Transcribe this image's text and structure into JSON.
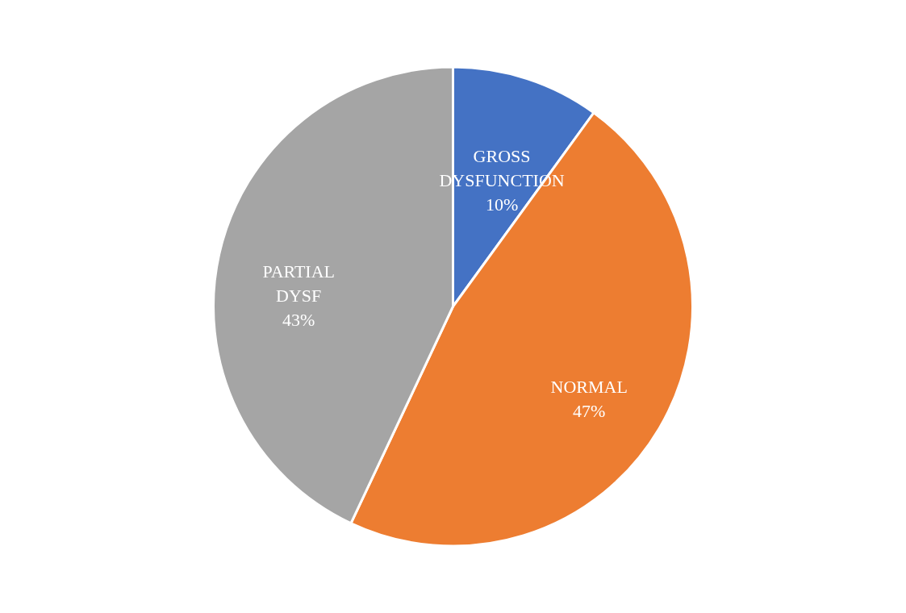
{
  "chart_data": {
    "type": "pie",
    "categories": [
      "GROSS DYSFUNCTION",
      "NORMAL",
      "PARTIAL DYSF"
    ],
    "values": [
      10,
      47,
      43
    ],
    "colors": [
      "#4472c4",
      "#ed7d31",
      "#a5a5a5"
    ],
    "value_labels": [
      "10%",
      "47%",
      "43%"
    ],
    "legend": false
  }
}
